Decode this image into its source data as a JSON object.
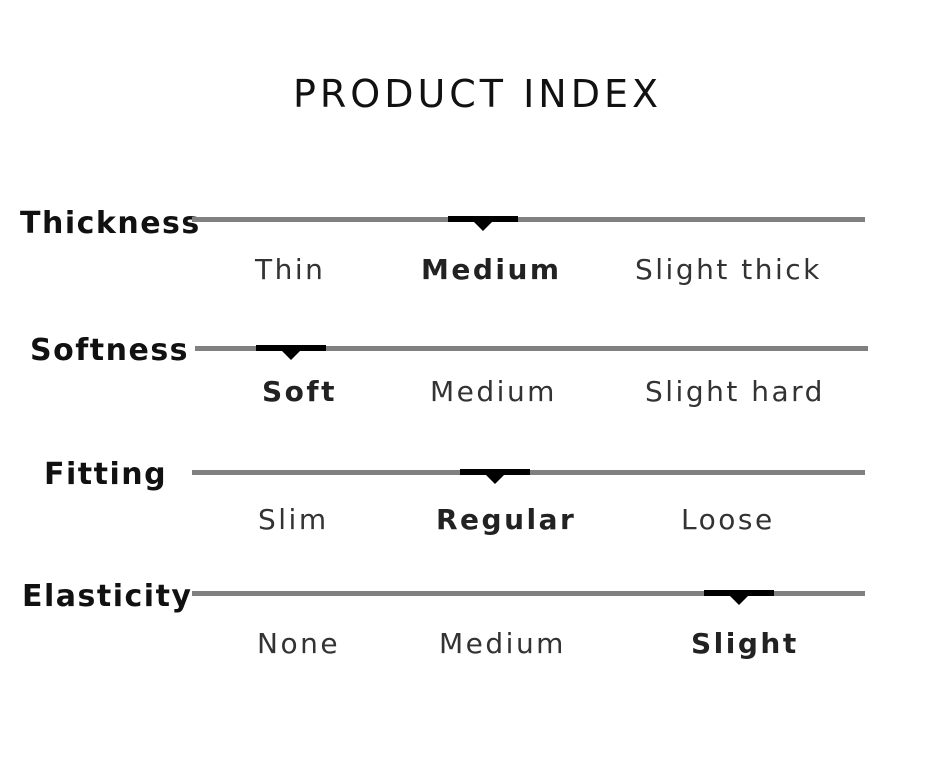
{
  "title": "PRODUCT INDEX",
  "attributes": [
    {
      "label": "Thickness",
      "options": [
        "Thin",
        "Medium",
        "Slight thick"
      ],
      "selected_index": 1
    },
    {
      "label": "Softness",
      "options": [
        "Soft",
        "Medium",
        "Slight hard"
      ],
      "selected_index": 0
    },
    {
      "label": "Fitting",
      "options": [
        "Slim",
        "Regular",
        "Loose"
      ],
      "selected_index": 1
    },
    {
      "label": "Elasticity",
      "options": [
        "None",
        "Medium",
        "Slight"
      ],
      "selected_index": 2
    }
  ],
  "colors": {
    "track": "#808080",
    "marker": "#000000",
    "text": "#222222"
  }
}
